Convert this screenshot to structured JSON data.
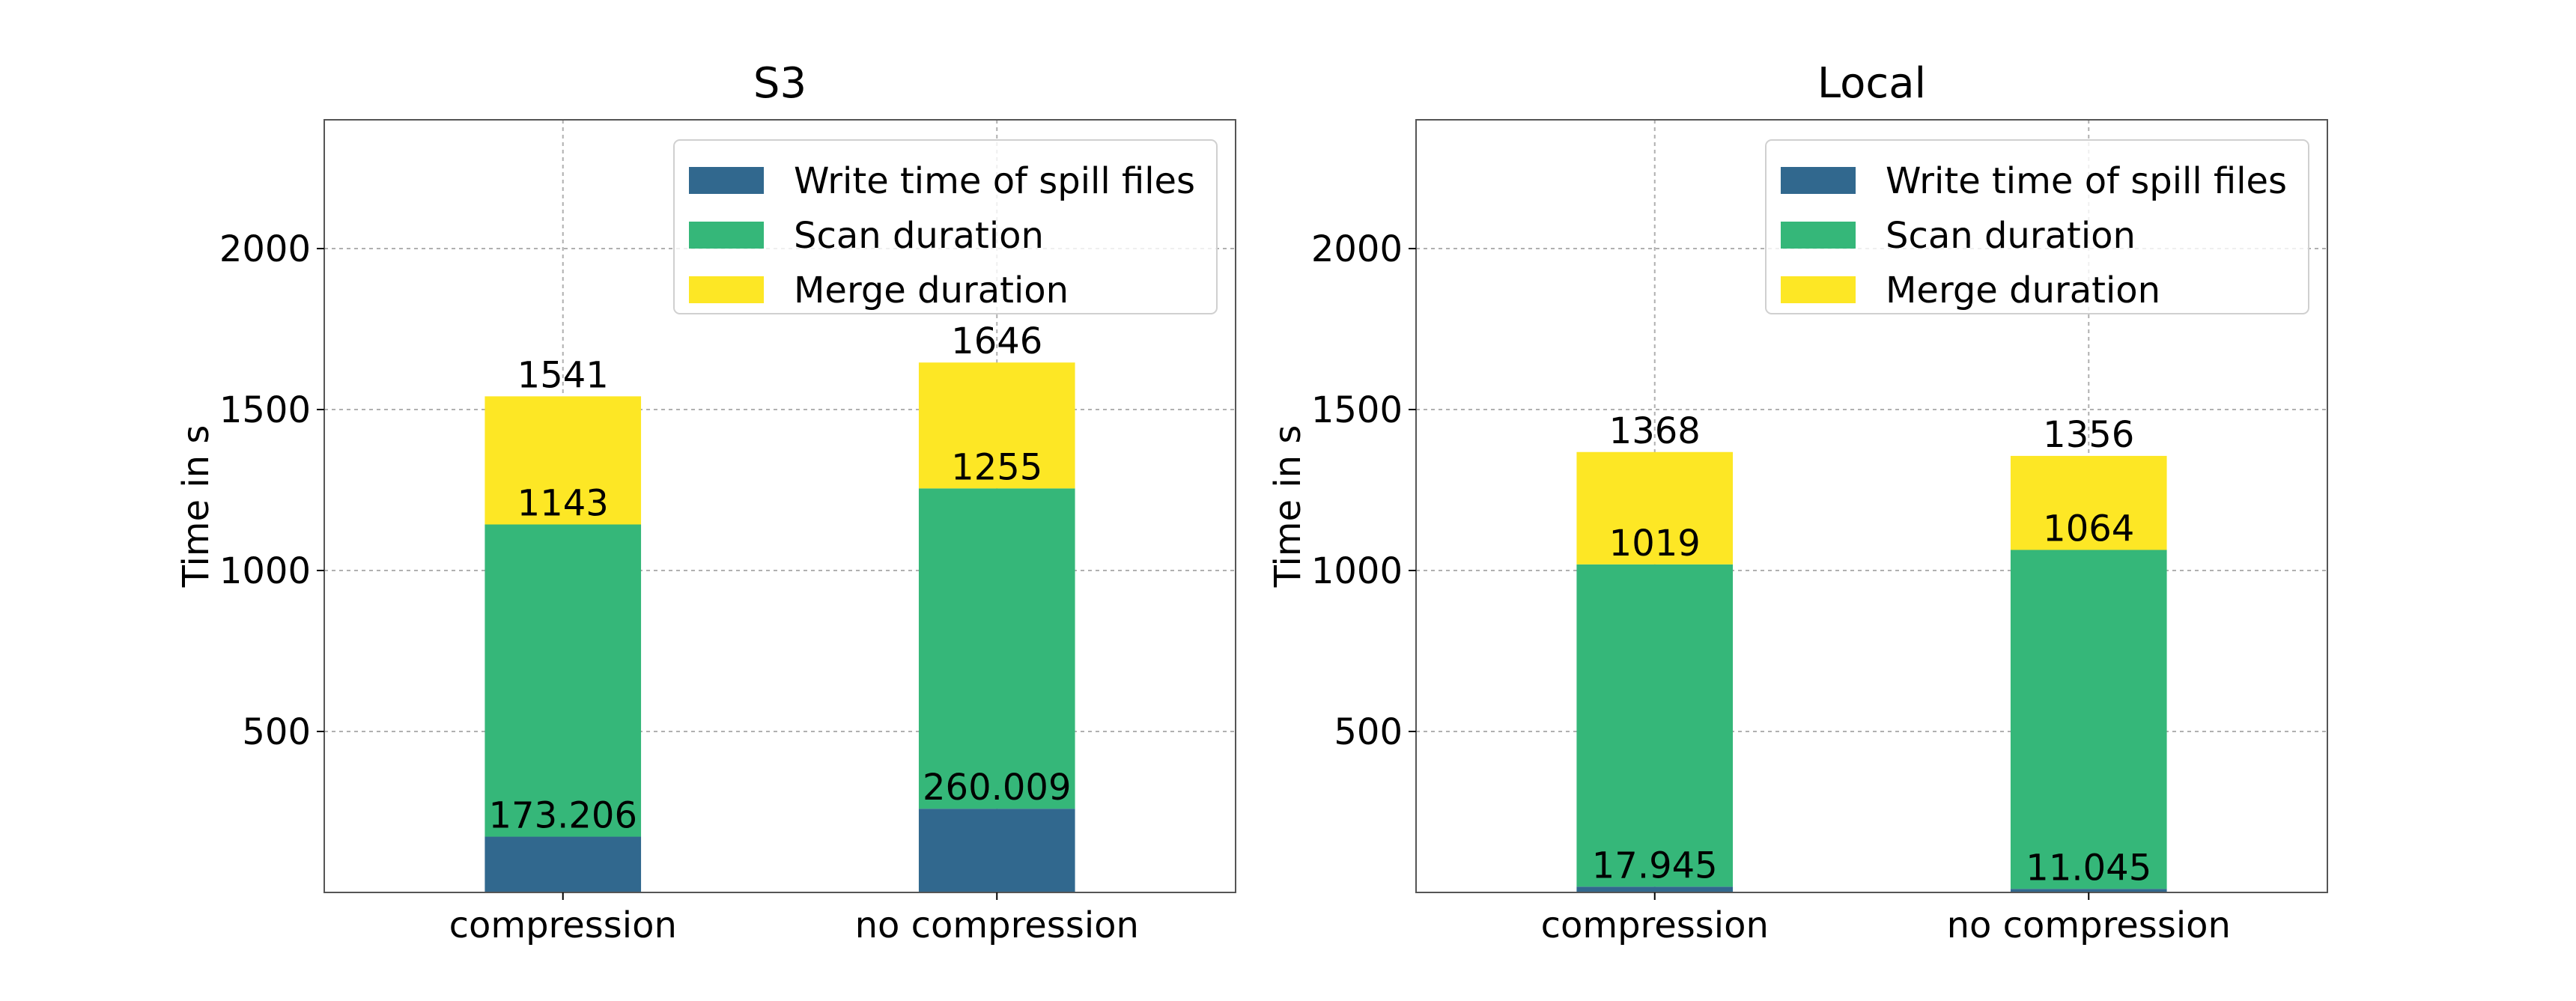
{
  "colors": {
    "write": "#31688e",
    "scan": "#35b779",
    "merge": "#fde725",
    "grid": "#b0b0b0",
    "frame": "#555555"
  },
  "chart_data": [
    {
      "type": "bar",
      "stacked": true,
      "title": "S3",
      "xlabel": "",
      "ylabel": "Time in s",
      "ylim": [
        0,
        2400
      ],
      "yticks": [
        "500",
        "1000",
        "1500",
        "2000"
      ],
      "grid": true,
      "legend_position": "top-right",
      "categories": [
        "compression",
        "no compression"
      ],
      "series": [
        {
          "name": "Write time of spill files",
          "values": [
            173.206,
            260.009
          ]
        },
        {
          "name": "Scan duration",
          "values": [
            969.794,
            994.991
          ]
        },
        {
          "name": "Merge duration",
          "values": [
            398,
            391
          ]
        }
      ],
      "data_labels": [
        {
          "category": "compression",
          "texts": [
            "173.206",
            "1143",
            "1541"
          ]
        },
        {
          "category": "no compression",
          "texts": [
            "260.009",
            "1255",
            "1646"
          ]
        }
      ]
    },
    {
      "type": "bar",
      "stacked": true,
      "title": "Local",
      "xlabel": "",
      "ylabel": "Time in s",
      "ylim": [
        0,
        2400
      ],
      "yticks": [
        "500",
        "1000",
        "1500",
        "2000"
      ],
      "grid": true,
      "legend_position": "top-right",
      "categories": [
        "compression",
        "no compression"
      ],
      "series": [
        {
          "name": "Write time of spill files",
          "values": [
            17.945,
            11.045
          ]
        },
        {
          "name": "Scan duration",
          "values": [
            1001.055,
            1052.955
          ]
        },
        {
          "name": "Merge duration",
          "values": [
            349,
            292
          ]
        }
      ],
      "data_labels": [
        {
          "category": "compression",
          "texts": [
            "17.945",
            "1019",
            "1368"
          ]
        },
        {
          "category": "no compression",
          "texts": [
            "11.045",
            "1064",
            "1356"
          ]
        }
      ]
    }
  ]
}
